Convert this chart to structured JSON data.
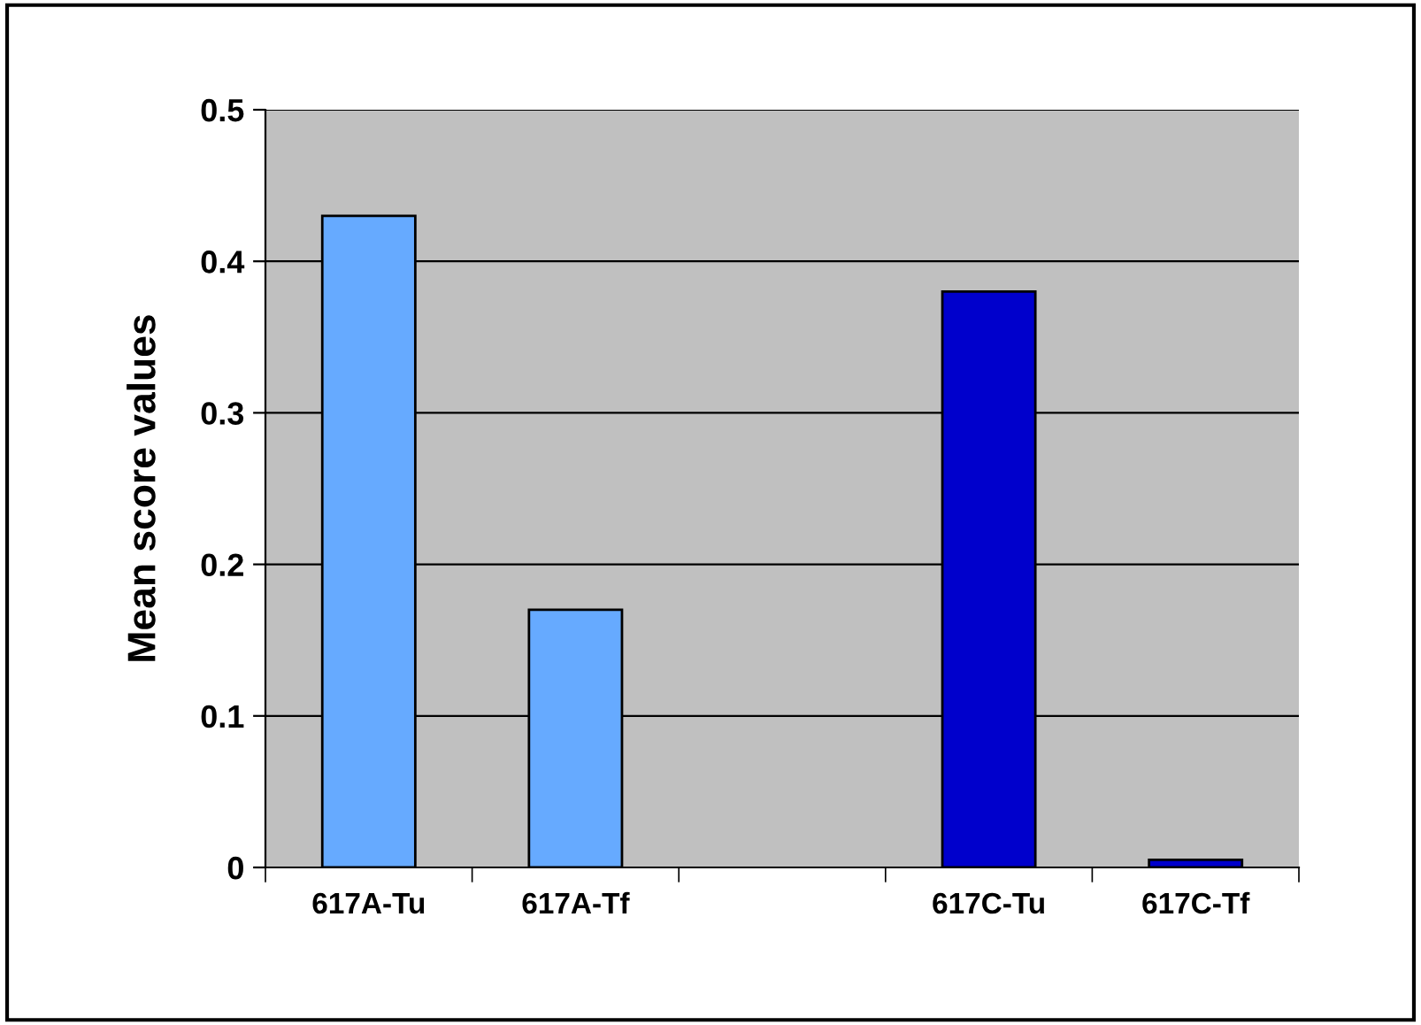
{
  "chart_data": {
    "type": "bar",
    "ylabel": "Mean score values",
    "categories": [
      "617A-Tu",
      "617A-Tf",
      null,
      "617C-Tu",
      "617C-Tf"
    ],
    "values": [
      0.43,
      0.17,
      null,
      0.38,
      0.005
    ],
    "colors": [
      "#66aaff",
      "#66aaff",
      "#66aaff",
      "#0000cc",
      "#0000cc"
    ],
    "ylim": [
      0,
      0.5
    ],
    "yticks": [
      0,
      0.1,
      0.2,
      0.3,
      0.4,
      0.5
    ],
    "grid": "y",
    "legend": false
  }
}
